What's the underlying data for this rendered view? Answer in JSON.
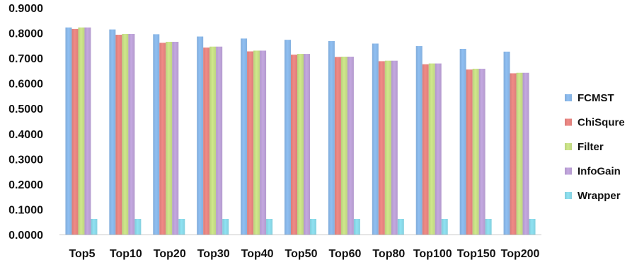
{
  "chart_data": {
    "type": "bar",
    "title": "",
    "xlabel": "",
    "ylabel": "",
    "ylim": [
      0,
      0.9
    ],
    "yticks": [
      "0.0000",
      "0.1000",
      "0.2000",
      "0.3000",
      "0.4000",
      "0.5000",
      "0.6000",
      "0.7000",
      "0.8000",
      "0.9000"
    ],
    "grid": "none",
    "legend_position": "right",
    "categories": [
      "Top5",
      "Top10",
      "Top20",
      "Top30",
      "Top40",
      "Top50",
      "Top60",
      "Top80",
      "Top100",
      "Top150",
      "Top200"
    ],
    "series": [
      {
        "name": "FCMST",
        "color": "#8fbff2",
        "values": [
          0.822,
          0.814,
          0.795,
          0.786,
          0.778,
          0.773,
          0.768,
          0.758,
          0.748,
          0.737,
          0.726
        ]
      },
      {
        "name": "ChiSqure",
        "color": "#f08a86",
        "values": [
          0.816,
          0.793,
          0.761,
          0.742,
          0.727,
          0.714,
          0.705,
          0.688,
          0.676,
          0.655,
          0.64
        ]
      },
      {
        "name": "Filter",
        "color": "#cfe88b",
        "values": [
          0.822,
          0.796,
          0.765,
          0.746,
          0.73,
          0.717,
          0.706,
          0.69,
          0.679,
          0.658,
          0.642
        ]
      },
      {
        "name": "InfoGain",
        "color": "#c4a8e0",
        "values": [
          0.822,
          0.796,
          0.765,
          0.746,
          0.73,
          0.717,
          0.706,
          0.69,
          0.679,
          0.658,
          0.642
        ]
      },
      {
        "name": "Wrapper",
        "color": "#8fe2f2",
        "values": [
          0.062,
          0.062,
          0.062,
          0.062,
          0.062,
          0.062,
          0.062,
          0.062,
          0.062,
          0.062,
          0.062
        ]
      }
    ]
  }
}
